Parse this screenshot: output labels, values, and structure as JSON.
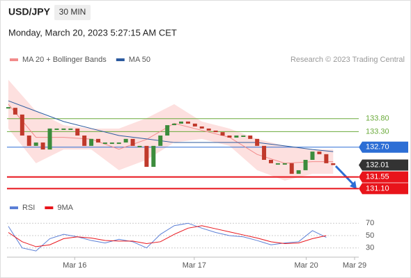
{
  "chart_data": {
    "type": "candlestick",
    "title": "USD/JPY",
    "timeframe": "30 MIN",
    "subtitle": "Monday, March 20, 2023 5:27:15 AM CET",
    "credit": "Research © 2023 Trading Central",
    "up_color": "#3c8c3c",
    "down_color": "#c0392b",
    "closes": [
      134.22,
      133.96,
      133.15,
      132.75,
      132.88,
      132.61,
      133.42,
      133.42,
      133.42,
      133.42,
      133.15,
      132.75,
      133.02,
      132.88,
      132.88,
      132.88,
      132.88,
      133.02,
      132.75,
      132.75,
      131.94,
      132.75,
      133.15,
      133.55,
      133.61,
      133.69,
      133.61,
      133.5,
      133.42,
      133.34,
      133.28,
      133.15,
      133.07,
      133.15,
      133.15,
      133.02,
      132.75,
      132.21,
      132.08,
      132.08,
      132.08,
      131.67,
      131.81,
      132.21,
      132.53,
      132.43,
      132.08,
      132.01
    ],
    "xlim": [
      0,
      50.4
    ],
    "xticks": [
      {
        "value": 9.6,
        "label": "Mar 16"
      },
      {
        "value": 26.9,
        "label": "Mar 17"
      },
      {
        "value": 43.1,
        "label": "Mar 20"
      },
      {
        "value": 50.1,
        "label": "Mar 29"
      }
    ],
    "ylim": [
      130.6,
      135.7
    ],
    "series": [
      {
        "name": "MA 20 + Bollinger Bands",
        "color": "#f28b8b",
        "band_color": "#fde0df",
        "x": [
          0,
          4,
          8,
          12,
          16,
          20,
          24,
          28,
          32,
          36,
          40,
          44,
          47
        ],
        "values": [
          134.36,
          133.08,
          133.08,
          133.01,
          132.62,
          133.0,
          133.62,
          133.35,
          133.08,
          132.42,
          132.08,
          132.14,
          132.14
        ],
        "upper": [
          135.3,
          134.09,
          133.55,
          133.42,
          133.42,
          133.82,
          134.36,
          133.69,
          133.42,
          133.02,
          132.75,
          132.61,
          132.61
        ],
        "lower": [
          133.42,
          132.08,
          132.61,
          132.61,
          131.81,
          132.21,
          132.88,
          133.02,
          132.75,
          131.81,
          131.41,
          131.67,
          131.67
        ]
      },
      {
        "name": "MA 50",
        "color": "#2b5a9e",
        "x": [
          0,
          4,
          8,
          12,
          16,
          20,
          24,
          28,
          32,
          36,
          40,
          44,
          47
        ],
        "values": [
          134.49,
          134.09,
          133.69,
          133.42,
          133.15,
          133.02,
          132.88,
          132.88,
          132.88,
          132.88,
          132.75,
          132.61,
          132.53
        ]
      }
    ],
    "levels": [
      {
        "value": 133.8,
        "label": "133.80",
        "color": "#6aaa3a",
        "kind": "text",
        "line": true
      },
      {
        "value": 133.3,
        "label": "133.30",
        "color": "#6aaa3a",
        "kind": "text",
        "line": true
      },
      {
        "value": 132.7,
        "label": "132.70",
        "color": "#2c6ed5",
        "kind": "box",
        "line": true
      },
      {
        "value": 132.01,
        "color": "#333333",
        "kind": "box",
        "line": false
      },
      {
        "value": 131.55,
        "color": "#e8141b",
        "kind": "box",
        "line": true
      },
      {
        "value": 131.1,
        "label": "131.10",
        "color": "#e8141b",
        "kind": "box",
        "line": true
      }
    ],
    "rsi": {
      "ylim": [
        15,
        77
      ],
      "yticks": [
        70,
        50,
        30
      ],
      "series": [
        {
          "name": "RSI",
          "color": "#5b7fd6",
          "x": [
            0,
            2,
            4,
            6,
            8,
            10,
            12,
            14,
            16,
            18,
            20,
            22,
            24,
            26,
            28,
            30,
            32,
            34,
            36,
            38,
            40,
            42,
            44,
            46
          ],
          "values": [
            65,
            30,
            25,
            45,
            52,
            48,
            42,
            38,
            44,
            40,
            30,
            52,
            66,
            70,
            62,
            55,
            50,
            48,
            42,
            35,
            38,
            40,
            58,
            47
          ]
        },
        {
          "name": "9MA",
          "color": "#e8141b",
          "x": [
            0,
            2,
            4,
            6,
            8,
            10,
            12,
            14,
            16,
            18,
            20,
            22,
            24,
            26,
            28,
            30,
            32,
            34,
            36,
            38,
            40,
            42,
            44,
            46
          ],
          "values": [
            55,
            40,
            32,
            35,
            45,
            48,
            46,
            42,
            41,
            41,
            37,
            40,
            52,
            62,
            66,
            61,
            56,
            51,
            46,
            40,
            37,
            38,
            45,
            50
          ]
        }
      ]
    }
  }
}
